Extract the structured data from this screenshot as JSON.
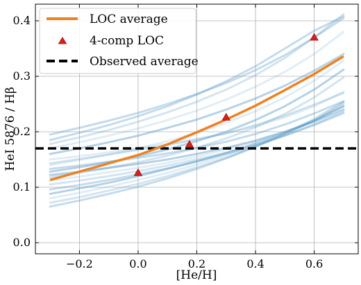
{
  "chart_data": {
    "type": "line",
    "title": "",
    "xlabel": "[He/H]",
    "ylabel": "HeI 5876 / Hβ",
    "xlim": [
      -0.35,
      0.75
    ],
    "ylim": [
      -0.02,
      0.43
    ],
    "xticks": [
      -0.2,
      0.0,
      0.2,
      0.4,
      0.6
    ],
    "xtick_labels": [
      "−0.2",
      "0.0",
      "0.2",
      "0.4",
      "0.6"
    ],
    "yticks": [
      0.0,
      0.1,
      0.2,
      0.3,
      0.4
    ],
    "ytick_labels": [
      "0.0",
      "0.1",
      "0.2",
      "0.3",
      "0.4"
    ],
    "grid": true,
    "legend_position": "top-left",
    "legend": [
      {
        "label": "LOC average",
        "style": "line",
        "color": "#f08020"
      },
      {
        "label": "4-comp LOC",
        "style": "marker",
        "color": "#d62020"
      },
      {
        "label": "Observed average",
        "style": "dashed",
        "color": "#000000"
      }
    ],
    "series": [
      {
        "name": "LOC average",
        "kind": "line",
        "color": "#f08020",
        "x": [
          -0.3,
          -0.2,
          -0.1,
          0.0,
          0.1,
          0.2,
          0.3,
          0.4,
          0.5,
          0.6,
          0.7
        ],
        "y": [
          0.113,
          0.128,
          0.143,
          0.158,
          0.177,
          0.199,
          0.222,
          0.247,
          0.275,
          0.304,
          0.336
        ]
      },
      {
        "name": "4-comp LOC",
        "kind": "scatter",
        "color": "#d62020",
        "x": [
          0.0,
          0.175,
          0.3,
          0.6
        ],
        "y": [
          0.126,
          0.177,
          0.226,
          0.37
        ]
      },
      {
        "name": "Observed average",
        "kind": "hline",
        "color": "#000000",
        "y": 0.17
      }
    ],
    "background_lines": {
      "color": "#5b9bc8",
      "x": [
        -0.3,
        -0.2,
        -0.1,
        0.0,
        0.1,
        0.2,
        0.3,
        0.4,
        0.5,
        0.6,
        0.7
      ],
      "models": [
        [
          0.15,
          0.156,
          0.163,
          0.17,
          0.178,
          0.187,
          0.197,
          0.21,
          0.226,
          0.246,
          0.272
        ],
        [
          0.143,
          0.151,
          0.159,
          0.167,
          0.176,
          0.186,
          0.197,
          0.212,
          0.229,
          0.249,
          0.27
        ],
        [
          0.133,
          0.139,
          0.146,
          0.153,
          0.161,
          0.171,
          0.182,
          0.196,
          0.213,
          0.233,
          0.255
        ],
        [
          0.122,
          0.128,
          0.135,
          0.142,
          0.15,
          0.16,
          0.171,
          0.184,
          0.2,
          0.218,
          0.24
        ],
        [
          0.112,
          0.119,
          0.127,
          0.135,
          0.144,
          0.155,
          0.168,
          0.183,
          0.2,
          0.22,
          0.245
        ],
        [
          0.105,
          0.112,
          0.12,
          0.129,
          0.139,
          0.15,
          0.162,
          0.176,
          0.193,
          0.212,
          0.233
        ],
        [
          0.096,
          0.104,
          0.113,
          0.123,
          0.134,
          0.146,
          0.16,
          0.175,
          0.193,
          0.213,
          0.236
        ],
        [
          0.088,
          0.098,
          0.108,
          0.12,
          0.133,
          0.147,
          0.162,
          0.179,
          0.198,
          0.22,
          0.246
        ],
        [
          0.08,
          0.09,
          0.101,
          0.113,
          0.126,
          0.141,
          0.157,
          0.175,
          0.196,
          0.22,
          0.248
        ],
        [
          0.072,
          0.082,
          0.094,
          0.106,
          0.12,
          0.136,
          0.153,
          0.173,
          0.195,
          0.22,
          0.251
        ],
        [
          0.065,
          0.076,
          0.088,
          0.101,
          0.116,
          0.133,
          0.152,
          0.173,
          0.197,
          0.223,
          0.254
        ],
        [
          0.16,
          0.17,
          0.181,
          0.193,
          0.207,
          0.222,
          0.24,
          0.26,
          0.283,
          0.31,
          0.34
        ],
        [
          0.17,
          0.181,
          0.193,
          0.206,
          0.221,
          0.238,
          0.258,
          0.281,
          0.308,
          0.34,
          0.38
        ],
        [
          0.178,
          0.19,
          0.203,
          0.218,
          0.235,
          0.254,
          0.276,
          0.302,
          0.333,
          0.37,
          0.412
        ],
        [
          0.185,
          0.198,
          0.212,
          0.228,
          0.246,
          0.267,
          0.291,
          0.318,
          0.35,
          0.382,
          0.408
        ],
        [
          0.128,
          0.136,
          0.145,
          0.156,
          0.168,
          0.183,
          0.2,
          0.221,
          0.246,
          0.276,
          0.312
        ],
        [
          0.14,
          0.149,
          0.159,
          0.17,
          0.183,
          0.198,
          0.216,
          0.237,
          0.262,
          0.292,
          0.328
        ],
        [
          0.118,
          0.126,
          0.135,
          0.145,
          0.157,
          0.171,
          0.188,
          0.208,
          0.232,
          0.262,
          0.298
        ],
        [
          0.195,
          0.207,
          0.22,
          0.234,
          0.25,
          0.268,
          0.288,
          0.311,
          0.338,
          0.37,
          0.405
        ]
      ]
    }
  }
}
